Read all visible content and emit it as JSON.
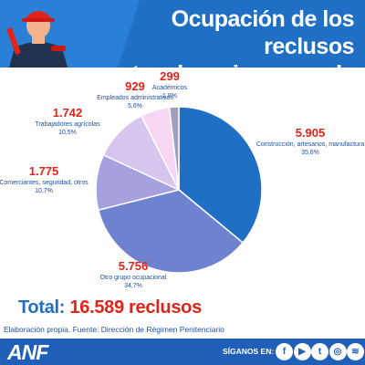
{
  "header": {
    "title_line1": "Ocupación de los reclusos",
    "title_line2": "antes de su ingreso a la cárcel"
  },
  "colors": {
    "header_bg": "#1f6fc5",
    "value_red": "#e2231a",
    "label_blue": "#1f4fa0",
    "footer_bg": "#1f5fb8"
  },
  "chart_data": {
    "type": "pie",
    "title": "Ocupación de los reclusos antes de su ingreso a la cárcel",
    "slices": [
      {
        "label": "Construcción, artesanos, manufactura",
        "value": 5905,
        "value_text": "5.905",
        "percent_text": "35,6%",
        "color": "#1f6fc5"
      },
      {
        "label": "Otro grupo ocupacional",
        "value": 5756,
        "value_text": "5.756",
        "percent_text": "34,7%",
        "color": "#6f82cf"
      },
      {
        "label": "Comerciantes, seguridad, otros",
        "value": 1775,
        "value_text": "1.775",
        "percent_text": "10,7%",
        "color": "#a7a0df"
      },
      {
        "label": "Trabajadores agrícolas",
        "value": 1742,
        "value_text": "1.742",
        "percent_text": "10,5%",
        "color": "#d6c6ee"
      },
      {
        "label": "Empleados administrativos",
        "value": 929,
        "value_text": "929",
        "percent_text": "5,6%",
        "color": "#f7d6f4"
      },
      {
        "label": "Académicos",
        "value": 299,
        "value_text": "299",
        "percent_text": "1,8%",
        "color": "#9f9fbd"
      }
    ]
  },
  "total": {
    "label": "Total:",
    "value": "16.589 reclusos"
  },
  "source": "Elaboración propia. Fuente: Dirección de Régimen Penitenciario",
  "footer": {
    "logo": "ANF",
    "follow_label": "SÍGANOS EN:",
    "social_icons": [
      {
        "name": "facebook-icon",
        "glyph": "f"
      },
      {
        "name": "youtube-icon",
        "glyph": "▶"
      },
      {
        "name": "twitter-icon",
        "glyph": "t"
      },
      {
        "name": "instagram-icon",
        "glyph": "◎"
      },
      {
        "name": "spotify-icon",
        "glyph": "≋"
      }
    ]
  }
}
